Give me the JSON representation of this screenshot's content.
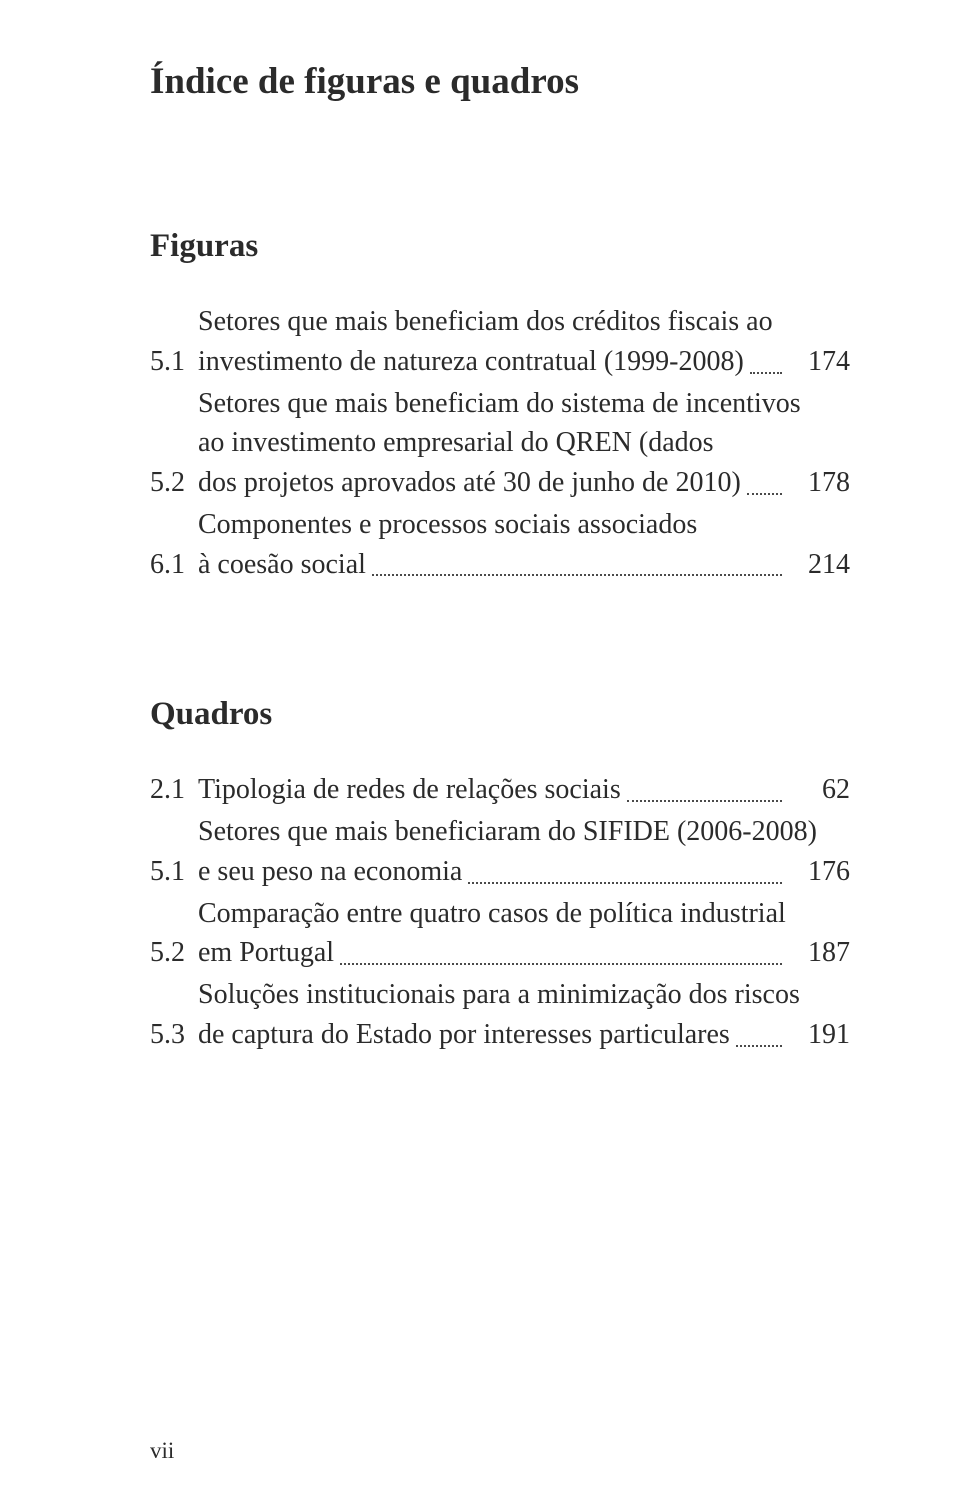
{
  "title": "Índice de figuras e quadros",
  "figuras": {
    "heading": "Figuras",
    "items": [
      {
        "num": "5.1",
        "lines": [
          "Setores que mais beneficiam dos créditos fiscais ao",
          "investimento de natureza contratual (1999-2008)"
        ],
        "page": "174"
      },
      {
        "num": "5.2",
        "lines": [
          "Setores que mais beneficiam do sistema de incentivos",
          "ao investimento empresarial do QREN (dados",
          "dos projetos aprovados até 30 de junho de 2010)"
        ],
        "page": "178"
      },
      {
        "num": "6.1",
        "lines": [
          "Componentes e processos sociais associados",
          "à coesão social"
        ],
        "page": "214"
      }
    ]
  },
  "quadros": {
    "heading": "Quadros",
    "items": [
      {
        "num": "2.1",
        "lines": [
          "Tipologia de redes de relações sociais"
        ],
        "page": "62"
      },
      {
        "num": "5.1",
        "lines": [
          "Setores que mais beneficiaram do SIFIDE (2006-2008)",
          "e seu peso na economia"
        ],
        "page": "176"
      },
      {
        "num": "5.2",
        "lines": [
          "Comparação entre quatro casos de política industrial",
          "em Portugal"
        ],
        "page": "187"
      },
      {
        "num": "5.3",
        "lines": [
          "Soluções institucionais para a minimização dos riscos",
          "de captura do Estado por interesses particulares"
        ],
        "page": "191"
      }
    ]
  },
  "folio": "vii",
  "colors": {
    "background": "#ffffff",
    "text": "#2b2b2b",
    "leader": "#4a4a4a"
  },
  "typography": {
    "title_fontsize": 37,
    "section_fontsize": 33,
    "body_fontsize": 28,
    "folio_fontsize": 23,
    "font_family": "Palatino"
  }
}
